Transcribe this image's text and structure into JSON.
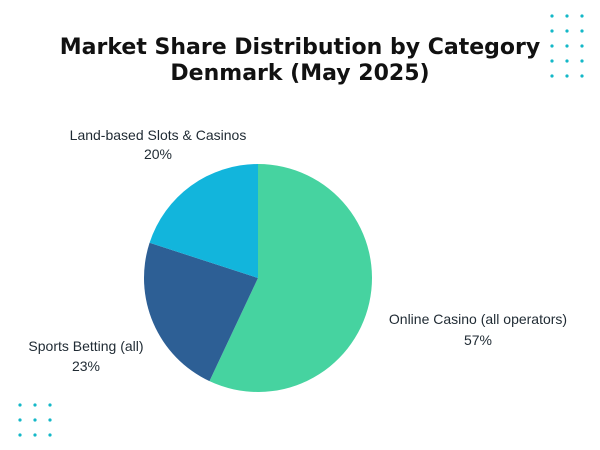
{
  "chart_data": {
    "type": "pie",
    "title": "Market Share Distribution by Category",
    "subtitle": "Denmark (May 2025)",
    "categories": [
      "Online Casino (all operators)",
      "Sports Betting (all)",
      "Land-based Slots & Casinos"
    ],
    "values": [
      57,
      23,
      20
    ],
    "value_labels": [
      "57%",
      "23%",
      "20%"
    ],
    "colors": [
      "#46d3a0",
      "#2d5f95",
      "#12b5dc"
    ]
  },
  "decorations": {
    "dot_color": "#14b8c8"
  }
}
